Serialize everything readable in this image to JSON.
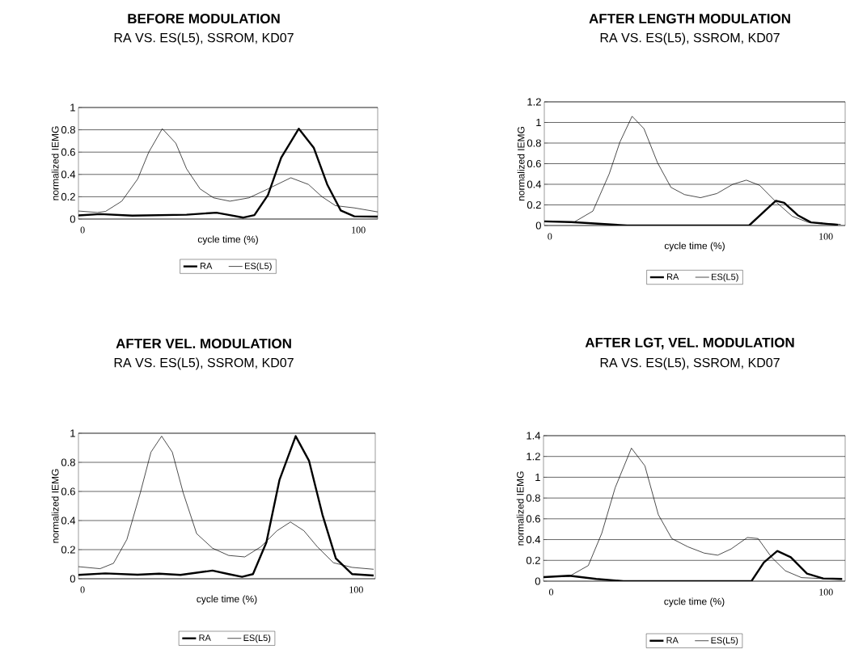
{
  "chart_data": [
    {
      "type": "line",
      "title": "BEFORE MODULATION",
      "subtitle": "RA VS. ES(L5), SSROM, KD07",
      "xlabel": "cycle time (%)",
      "ylabel": "normalized IEMG",
      "xlim": [
        -1.5,
        107
      ],
      "ylim": [
        0,
        1
      ],
      "xticks": [
        0,
        100
      ],
      "yticks": [
        0,
        0.2,
        0.4,
        0.6,
        0.8,
        1
      ],
      "grid": "y",
      "legend": "bottom",
      "marker": "none",
      "line_style": "solid",
      "series": [
        {
          "name": "RA",
          "color": "#000000",
          "x": [
            -1.5,
            6.4,
            18,
            37.7,
            48.5,
            53.4,
            58.3,
            62.3,
            67.2,
            72,
            78.4,
            83.8,
            88.7,
            93.6,
            98.5,
            107
          ],
          "values": [
            0.033,
            0.044,
            0.031,
            0.039,
            0.057,
            0.035,
            0.013,
            0.035,
            0.215,
            0.55,
            0.81,
            0.64,
            0.31,
            0.077,
            0.024,
            0.022
          ]
        },
        {
          "name": "ES(L5)",
          "color": "#000000",
          "x": [
            -1.5,
            5.4,
            8.3,
            14.2,
            20,
            24,
            28.9,
            33.8,
            37.7,
            42.6,
            47.5,
            53.4,
            60.3,
            67.2,
            75.5,
            81.9,
            86.8,
            91.7,
            98.5,
            107
          ],
          "values": [
            0.072,
            0.059,
            0.068,
            0.16,
            0.36,
            0.6,
            0.81,
            0.68,
            0.45,
            0.27,
            0.19,
            0.16,
            0.19,
            0.27,
            0.37,
            0.31,
            0.2,
            0.12,
            0.1,
            0.064
          ]
        }
      ]
    },
    {
      "type": "line",
      "title": "AFTER LENGTH MODULATION",
      "subtitle": "RA VS. ES(L5), SSROM, KD07",
      "xlabel": "cycle time (%)",
      "ylabel": "normalized IEMG",
      "xlim": [
        -2,
        107
      ],
      "ylim": [
        0,
        1.2
      ],
      "xticks": [
        0,
        100
      ],
      "yticks": [
        0,
        0.2,
        0.4,
        0.6,
        0.8,
        1,
        1.2
      ],
      "grid": "y",
      "legend": "bottom",
      "marker": "none",
      "line_style": "solid",
      "series": [
        {
          "name": "RA",
          "color": "#000000",
          "x": [
            -2,
            7.8,
            28,
            72.2,
            79,
            81.9,
            84.9,
            89.8,
            94.6,
            104.4
          ],
          "values": [
            0.04,
            0.033,
            0,
            0,
            0.17,
            0.24,
            0.22,
            0.1,
            0.03,
            0.007
          ]
        },
        {
          "name": "ES(L5)",
          "color": "#000000",
          "x": [
            -2,
            8.8,
            15.6,
            21.5,
            25.4,
            29.8,
            34.1,
            39,
            43.9,
            48.8,
            54.6,
            60.5,
            66.3,
            71.2,
            76,
            81.9,
            87.8,
            93.7,
            105.4
          ],
          "values": [
            0.04,
            0.033,
            0.14,
            0.5,
            0.81,
            1.06,
            0.94,
            0.61,
            0.37,
            0.3,
            0.27,
            0.31,
            0.4,
            0.44,
            0.39,
            0.23,
            0.09,
            0.03,
            0.011
          ]
        }
      ]
    },
    {
      "type": "line",
      "title": "AFTER VEL. MODULATION",
      "subtitle": "RA VS. ES(L5), SSROM, KD07",
      "xlabel": "cycle time (%)",
      "ylabel": "normalized IEMG",
      "xlim": [
        -1.5,
        107
      ],
      "ylim": [
        0,
        1
      ],
      "xticks": [
        0,
        100
      ],
      "yticks": [
        0,
        0.2,
        0.4,
        0.6,
        0.8,
        1
      ],
      "grid": "y",
      "legend": "bottom",
      "marker": "none",
      "line_style": "solid",
      "series": [
        {
          "name": "RA",
          "color": "#000000",
          "x": [
            -1.5,
            8.3,
            20.1,
            28,
            35.8,
            47.5,
            53.4,
            58.3,
            62.3,
            67.2,
            72,
            77.9,
            82.8,
            87.7,
            92.6,
            98.5,
            106.4
          ],
          "values": [
            0.026,
            0.037,
            0.028,
            0.035,
            0.026,
            0.056,
            0.032,
            0.013,
            0.032,
            0.25,
            0.68,
            0.98,
            0.81,
            0.44,
            0.14,
            0.032,
            0.022
          ]
        },
        {
          "name": "ES(L5)",
          "color": "#000000",
          "x": [
            -1.5,
            6.4,
            11.3,
            16.2,
            21.1,
            25,
            28.9,
            32.8,
            36.8,
            41.7,
            47.5,
            53.4,
            59.3,
            65.2,
            71.1,
            76,
            80.9,
            85.8,
            91.7,
            98.5,
            106.4
          ],
          "values": [
            0.083,
            0.069,
            0.106,
            0.27,
            0.59,
            0.87,
            0.98,
            0.87,
            0.59,
            0.31,
            0.21,
            0.16,
            0.15,
            0.22,
            0.33,
            0.39,
            0.33,
            0.22,
            0.11,
            0.078,
            0.065
          ]
        }
      ]
    },
    {
      "type": "line",
      "title": "AFTER LGT, VEL. MODULATION",
      "subtitle": "RA VS. ES(L5), SSROM, KD07",
      "xlabel": "cycle time (%)",
      "ylabel": "normalized IEMG",
      "xlim": [
        -2.8,
        107
      ],
      "ylim": [
        0,
        1.4
      ],
      "xticks": [
        0,
        100
      ],
      "yticks": [
        0,
        0.2,
        0.4,
        0.6,
        0.8,
        1,
        1.2,
        1.4
      ],
      "grid": "y",
      "legend": "bottom",
      "marker": "none",
      "line_style": "solid",
      "series": [
        {
          "name": "RA",
          "color": "#000000",
          "x": [
            -2.8,
            6.6,
            16.4,
            26.3,
            72.9,
            77.4,
            82.3,
            87.2,
            93.1,
            99,
            105.9
          ],
          "values": [
            0.039,
            0.052,
            0.021,
            0,
            0,
            0.18,
            0.29,
            0.23,
            0.073,
            0.026,
            0.021
          ]
        },
        {
          "name": "ES(L5)",
          "color": "#000000",
          "x": [
            -2.8,
            6.6,
            13.5,
            18.4,
            23.3,
            29.2,
            34.1,
            39,
            43.9,
            49.8,
            55.7,
            60.6,
            65.5,
            71.4,
            75.3,
            80.2,
            85.2,
            91.1,
            105.9
          ],
          "values": [
            0.039,
            0.047,
            0.15,
            0.46,
            0.9,
            1.28,
            1.11,
            0.64,
            0.41,
            0.33,
            0.27,
            0.25,
            0.31,
            0.42,
            0.41,
            0.23,
            0.1,
            0.034,
            0.016
          ]
        }
      ]
    }
  ]
}
